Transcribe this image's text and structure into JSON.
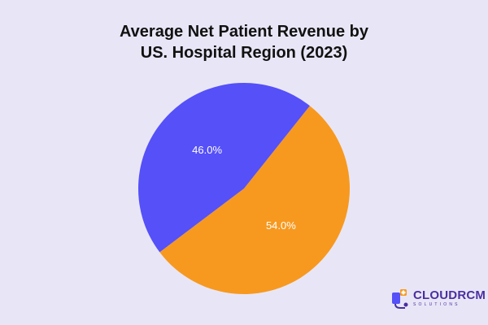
{
  "chart_data": {
    "type": "pie",
    "title": "Average Net Patient Revenue by US. Hospital Region (2023)",
    "title_lines": [
      "Average Net Patient Revenue by",
      "US. Hospital Region (2023)"
    ],
    "slices": [
      {
        "value": 54.0,
        "label": "54.0%",
        "color": "#f7991f"
      },
      {
        "value": 46.0,
        "label": "46.0%",
        "color": "#5550f8"
      }
    ],
    "start_angle_deg": -51.5,
    "direction": "clockwise"
  },
  "branding": {
    "name": "CLOUDRCM",
    "subtitle": "SOLUTIONS",
    "icon": "cloudrcm-logo-icon",
    "colors": {
      "primary": "#4a2fa0",
      "accent": "#f7991f",
      "secondary": "#5550f8"
    }
  },
  "background_color": "#e8e6f6"
}
